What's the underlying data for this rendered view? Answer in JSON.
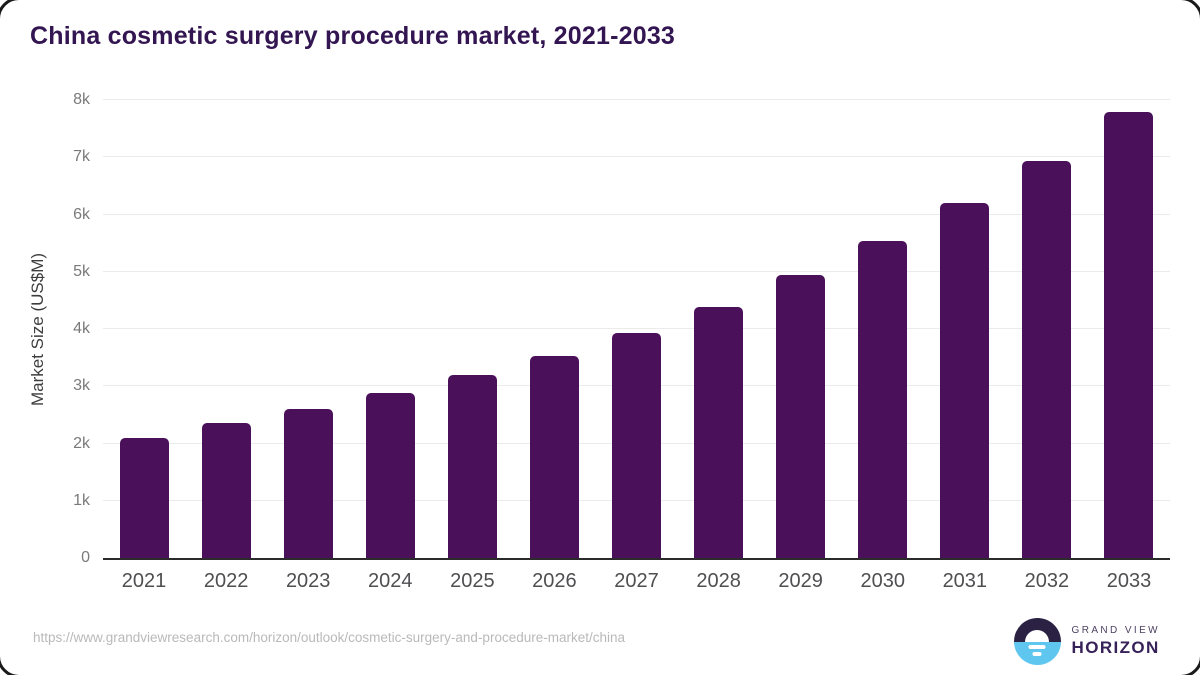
{
  "chart_data": {
    "type": "bar",
    "title": "China cosmetic surgery procedure market, 2021-2033",
    "categories": [
      "2021",
      "2022",
      "2023",
      "2024",
      "2025",
      "2026",
      "2027",
      "2028",
      "2029",
      "2030",
      "2031",
      "2032",
      "2033"
    ],
    "values": [
      2100,
      2350,
      2600,
      2880,
      3190,
      3530,
      3930,
      4380,
      4950,
      5540,
      6200,
      6940,
      7790
    ],
    "xlabel": "",
    "ylabel": "Market Size (US$M)",
    "yticks": [
      {
        "label": "0",
        "value": 0
      },
      {
        "label": "1k",
        "value": 1000
      },
      {
        "label": "2k",
        "value": 2000
      },
      {
        "label": "3k",
        "value": 3000
      },
      {
        "label": "4k",
        "value": 4000
      },
      {
        "label": "5k",
        "value": 5000
      },
      {
        "label": "6k",
        "value": 6000
      },
      {
        "label": "7k",
        "value": 7000
      },
      {
        "label": "8k",
        "value": 8000
      }
    ],
    "ylim": [
      0,
      8000
    ],
    "grid": true,
    "legend": "none"
  },
  "colors": {
    "bar": "#4a1059",
    "title": "#321551",
    "axis_line": "#2b2b2b",
    "gridline": "#ebebeb",
    "logo_dark": "#2b2143",
    "logo_blue": "#5fc6f0"
  },
  "footer": {
    "url": "https://www.grandviewresearch.com/horizon/outlook/cosmetic-surgery-and-procedure-market/china",
    "brand_line1": "GRAND VIEW",
    "brand_line2": "HORIZON"
  }
}
